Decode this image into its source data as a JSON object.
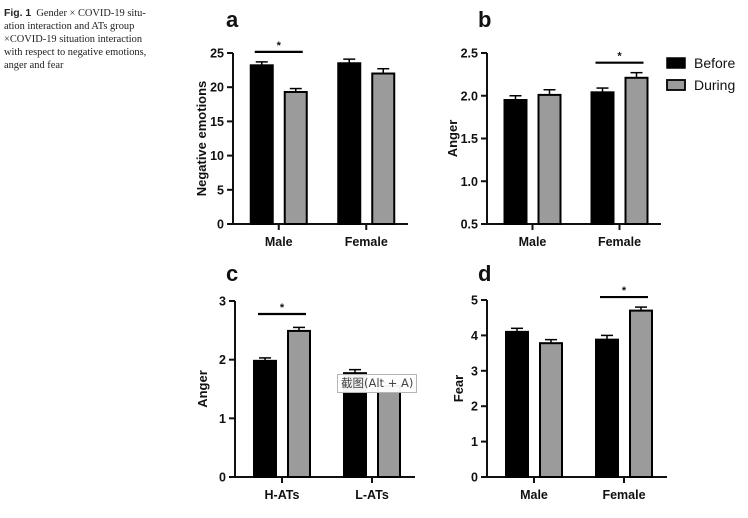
{
  "caption": {
    "label": "Fig. 1",
    "text": "Gender × COVID-19 situation interaction and ATs group ×COVID-19 situation interaction with respect to negative emotions, anger and fear",
    "lines": [
      "Gender × COVID-19 situ-",
      "ation interaction and ATs group",
      "×COVID-19 situation interaction",
      "with respect to negative emotions,",
      "anger and fear"
    ]
  },
  "tooltip": {
    "text": "截图(Alt + A)"
  },
  "colors": {
    "before": "#000000",
    "during": "#9b9b9b",
    "axis": "#111111"
  },
  "legend": {
    "position": "top-right",
    "items": [
      {
        "label": "Before",
        "color": "#000000"
      },
      {
        "label": "During",
        "color": "#9b9b9b"
      }
    ]
  },
  "chart_data": [
    {
      "type": "bar",
      "panel": "a",
      "ylabel": "Negative emotions",
      "categories": [
        "Male",
        "Female"
      ],
      "ylim": [
        0,
        25
      ],
      "yticks": [
        "0",
        "5",
        "10",
        "15",
        "20",
        "25"
      ],
      "ytick_values": [
        0,
        5,
        10,
        15,
        20,
        25
      ],
      "series": [
        {
          "name": "Before",
          "values": [
            23.2,
            23.5
          ],
          "errors": [
            0.5,
            0.6
          ]
        },
        {
          "name": "During",
          "values": [
            19.3,
            22.0
          ],
          "errors": [
            0.5,
            0.7
          ]
        }
      ],
      "significance": [
        {
          "category": "Male",
          "label": "*"
        }
      ]
    },
    {
      "type": "bar",
      "panel": "b",
      "ylabel": "Anger",
      "categories": [
        "Male",
        "Female"
      ],
      "ylim": [
        0.5,
        2.5
      ],
      "yticks": [
        "0.5",
        "1.0",
        "1.5",
        "2.0",
        "2.5"
      ],
      "ytick_values": [
        0.5,
        1.0,
        1.5,
        2.0,
        2.5
      ],
      "series": [
        {
          "name": "Before",
          "values": [
            1.95,
            2.04
          ],
          "errors": [
            0.05,
            0.05
          ]
        },
        {
          "name": "During",
          "values": [
            2.01,
            2.21
          ],
          "errors": [
            0.06,
            0.06
          ]
        }
      ],
      "significance": [
        {
          "category": "Female",
          "label": "*"
        }
      ]
    },
    {
      "type": "bar",
      "panel": "c",
      "ylabel": "Anger",
      "categories": [
        "H-ATs",
        "L-ATs"
      ],
      "ylim": [
        0,
        3
      ],
      "yticks": [
        "0",
        "1",
        "2",
        "3"
      ],
      "ytick_values": [
        0,
        1,
        2,
        3
      ],
      "series": [
        {
          "name": "Before",
          "values": [
            1.98,
            1.77
          ],
          "errors": [
            0.05,
            0.06
          ]
        },
        {
          "name": "During",
          "values": [
            2.49,
            1.55
          ],
          "errors": [
            0.06,
            0.06
          ]
        }
      ],
      "significance": [
        {
          "category": "H-ATs",
          "label": "*"
        }
      ]
    },
    {
      "type": "bar",
      "panel": "d",
      "ylabel": "Fear",
      "categories": [
        "Male",
        "Female"
      ],
      "ylim": [
        0,
        5
      ],
      "yticks": [
        "0",
        "1",
        "2",
        "3",
        "4",
        "5"
      ],
      "ytick_values": [
        0,
        1,
        2,
        3,
        4,
        5
      ],
      "series": [
        {
          "name": "Before",
          "values": [
            4.1,
            3.88
          ],
          "errors": [
            0.1,
            0.12
          ]
        },
        {
          "name": "During",
          "values": [
            3.78,
            4.7
          ],
          "errors": [
            0.1,
            0.1
          ]
        }
      ],
      "significance": [
        {
          "category": "Female",
          "label": "*"
        }
      ]
    }
  ]
}
